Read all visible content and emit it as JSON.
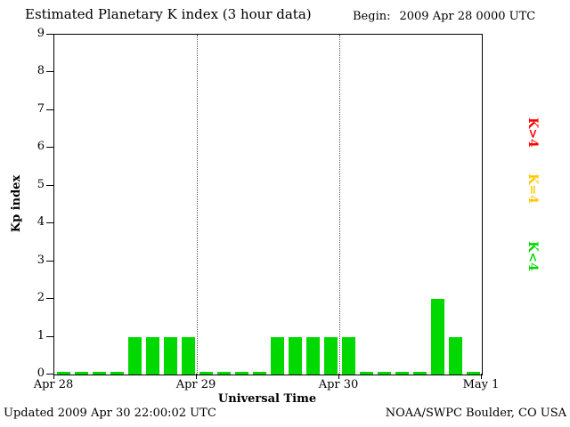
{
  "header": {
    "title": "Estimated Planetary K index (3 hour data)",
    "begin_label": "Begin:",
    "begin_value": "2009 Apr 28 0000 UTC"
  },
  "axes": {
    "ylabel": "Kp index",
    "xlabel": "Universal Time"
  },
  "footer": {
    "updated": "Updated 2009 Apr 30 22:00:02 UTC",
    "credit": "NOAA/SWPC Boulder, CO USA"
  },
  "legend": [
    {
      "label": "K>4",
      "color": "#ff0000"
    },
    {
      "label": "K=4",
      "color": "#ffc800"
    },
    {
      "label": "K<4",
      "color": "#00d800"
    }
  ],
  "chart_data": {
    "type": "bar",
    "title": "Estimated Planetary K index (3 hour data)",
    "xlabel": "Universal Time",
    "ylabel": "Kp index",
    "ylim": [
      0,
      9
    ],
    "yticks": [
      0,
      1,
      2,
      3,
      4,
      5,
      6,
      7,
      8,
      9
    ],
    "xticklabels": [
      "Apr 28",
      "Apr 29",
      "Apr 30",
      "May 1"
    ],
    "interval_hours": 3,
    "bars_per_day": 8,
    "values": [
      0,
      0,
      0,
      0,
      1,
      1,
      1,
      1,
      0,
      0,
      0,
      0,
      1,
      1,
      1,
      1,
      1,
      0,
      0,
      0,
      0,
      2,
      1,
      0
    ],
    "series": [
      {
        "day": "Apr 28",
        "values": [
          0,
          0,
          0,
          0,
          1,
          1,
          1,
          1
        ]
      },
      {
        "day": "Apr 29",
        "values": [
          0,
          0,
          0,
          0,
          1,
          1,
          1,
          1
        ]
      },
      {
        "day": "Apr 30",
        "values": [
          1,
          0,
          0,
          0,
          0,
          2,
          1,
          0
        ]
      }
    ],
    "colors": {
      "low": "#00d800",
      "mid": "#ffc800",
      "high": "#ff0000"
    },
    "color_rule": "green if K<4, yellow if K=4, red if K>4",
    "grid": "dotted vertical lines at day boundaries",
    "legend_position": "right side, rotated 90deg"
  }
}
